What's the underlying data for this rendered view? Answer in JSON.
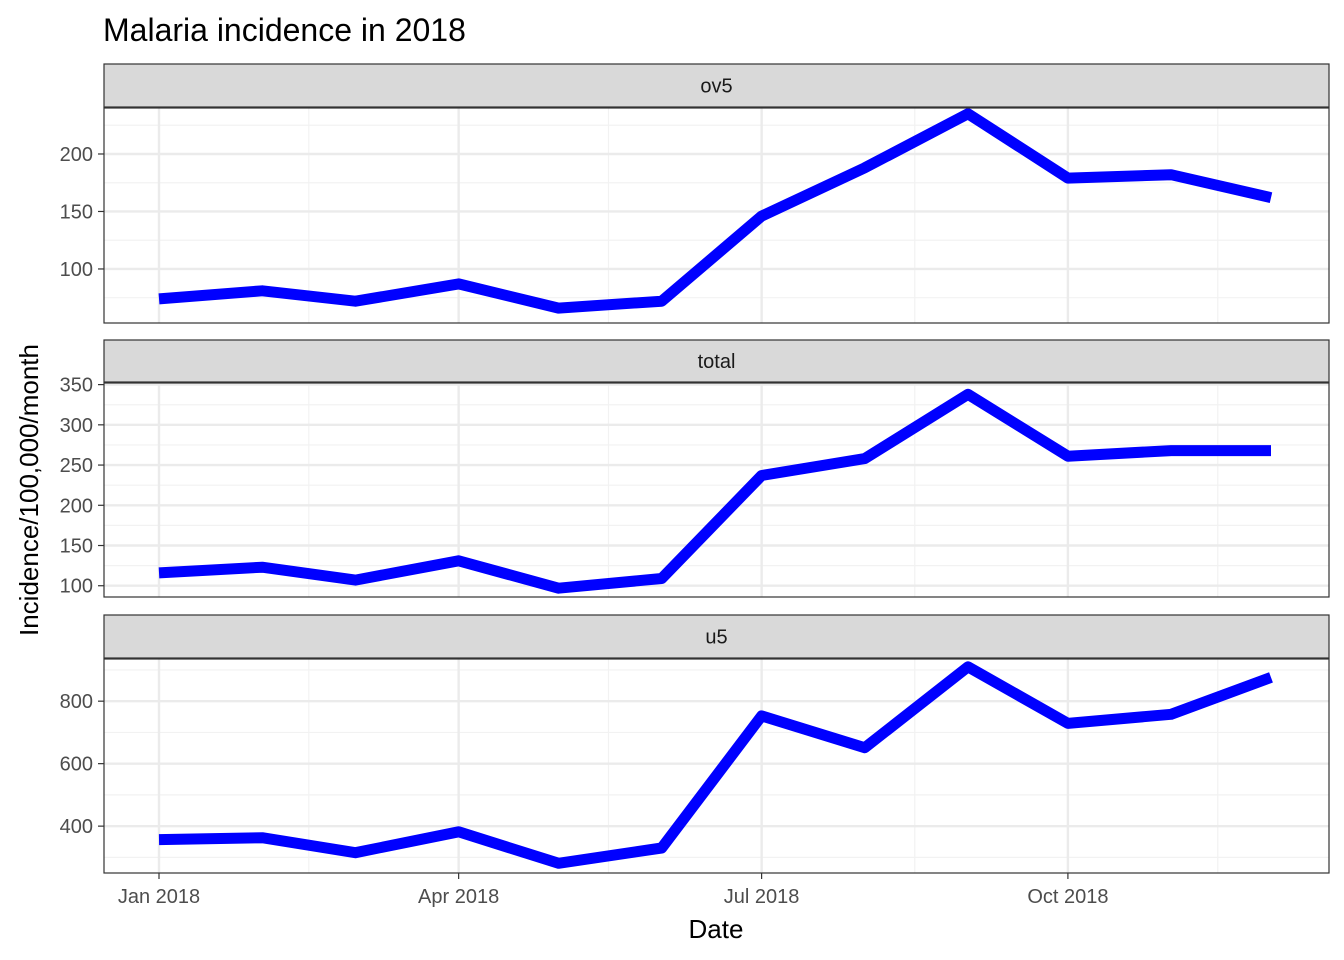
{
  "chart_data": {
    "type": "line",
    "title": "Malaria incidence in 2018",
    "xlabel": "Date",
    "ylabel": "Incidence/100,000/month",
    "grid": true,
    "line_color": "#0000ff",
    "x_ticks": [
      "Jan 2018",
      "Apr 2018",
      "Jul 2018",
      "Oct 2018"
    ],
    "x": [
      "2018-01",
      "2018-02",
      "2018-03",
      "2018-04",
      "2018-05",
      "2018-06",
      "2018-07",
      "2018-08",
      "2018-09",
      "2018-10",
      "2018-11",
      "2018-12"
    ],
    "facets": [
      {
        "label": "ov5",
        "ylim": [
          53,
          240
        ],
        "y_ticks": [
          100,
          150,
          200
        ],
        "values": [
          74,
          81,
          72,
          87,
          66,
          72,
          146,
          188,
          235,
          179,
          182,
          162
        ]
      },
      {
        "label": "total",
        "ylim": [
          86,
          352
        ],
        "y_ticks": [
          100,
          150,
          200,
          250,
          300,
          350
        ],
        "values": [
          116,
          123,
          107,
          131,
          97,
          109,
          237,
          258,
          338,
          261,
          268,
          268
        ]
      },
      {
        "label": "u5",
        "ylim": [
          250,
          935
        ],
        "y_ticks": [
          400,
          600,
          800
        ],
        "values": [
          357,
          363,
          315,
          382,
          281,
          330,
          753,
          651,
          910,
          729,
          758,
          876
        ]
      }
    ]
  }
}
